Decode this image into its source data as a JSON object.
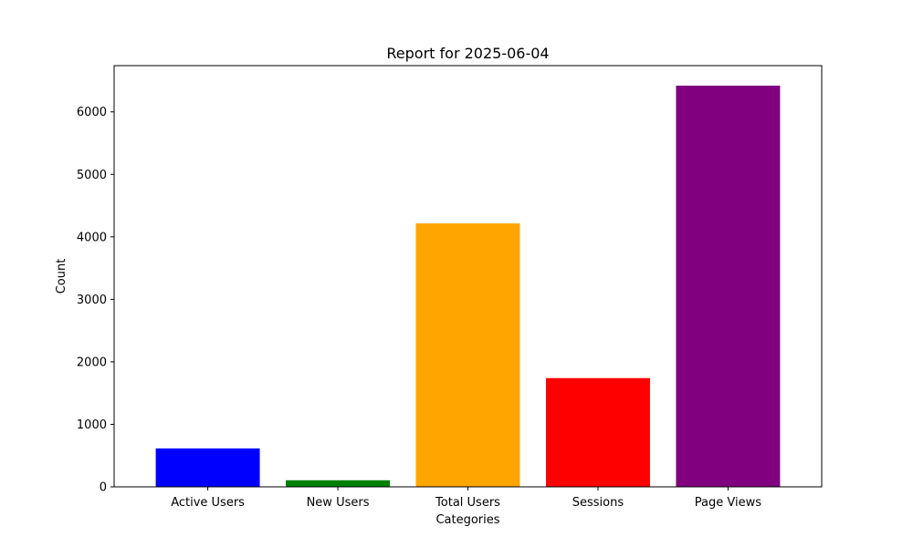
{
  "chart_data": {
    "type": "bar",
    "title": "Report for 2025-06-04",
    "xlabel": "Categories",
    "ylabel": "Count",
    "categories": [
      "Active Users",
      "New Users",
      "Total Users",
      "Sessions",
      "Page Views"
    ],
    "values": [
      615,
      105,
      4215,
      1740,
      6420
    ],
    "colors": [
      "#0000ff",
      "#008000",
      "#ffa500",
      "#ff0000",
      "#800080"
    ],
    "ylim": [
      0,
      6740
    ],
    "yticks": [
      0,
      1000,
      2000,
      3000,
      4000,
      5000,
      6000
    ],
    "grid": false,
    "legend": false
  }
}
